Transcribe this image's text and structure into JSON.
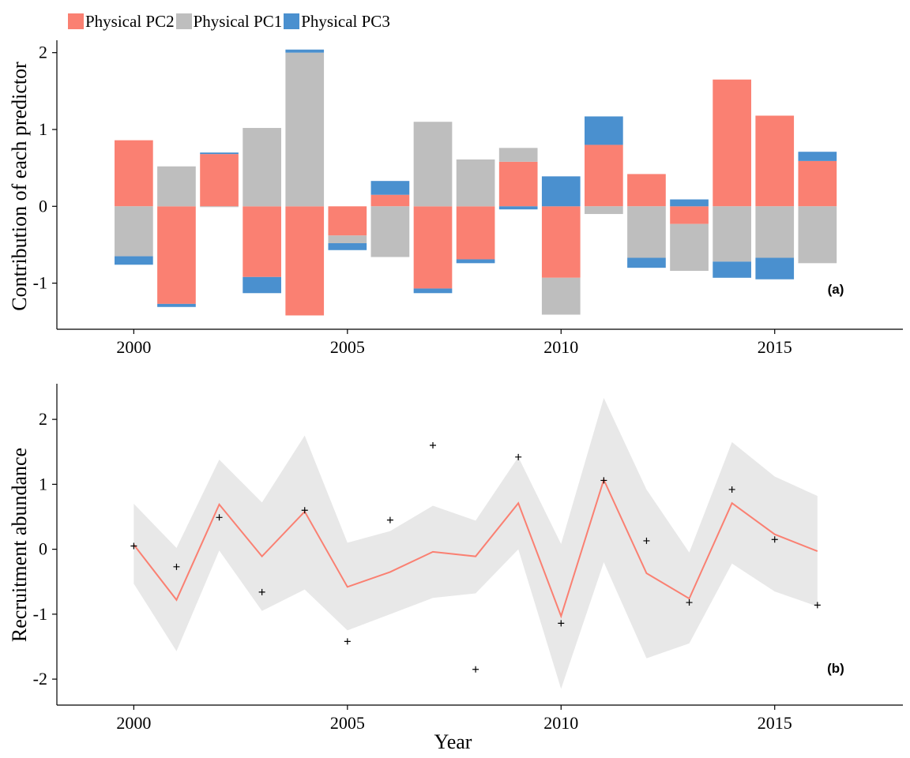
{
  "legend": {
    "items": [
      {
        "label": "Physical PC2",
        "color": "#FA8072"
      },
      {
        "label": "Physical PC1",
        "color": "#BEBEBE"
      },
      {
        "label": "Physical PC3",
        "color": "#4A90CF"
      }
    ]
  },
  "chart_data": [
    {
      "type": "bar",
      "stacked": "diverging",
      "panel_label": "(a)",
      "ylabel": "Contribution of each predictor",
      "xlabel": "",
      "xlim": [
        1998.2,
        2018.0
      ],
      "ylim": [
        -1.6,
        2.12
      ],
      "xticks": [
        2000,
        2005,
        2010,
        2015
      ],
      "yticks": [
        -1,
        0,
        1,
        2
      ],
      "grid": false,
      "legend_position": "top-left",
      "categories": [
        2000,
        2001,
        2002,
        2003,
        2004,
        2005,
        2006,
        2007,
        2008,
        2009,
        2010,
        2011,
        2012,
        2013,
        2014,
        2015,
        2016
      ],
      "series": [
        {
          "name": "Physical PC2",
          "color": "#FA8072",
          "values": [
            0.86,
            -1.27,
            0.68,
            -0.92,
            -1.42,
            -0.38,
            0.15,
            -1.07,
            -0.69,
            0.58,
            -0.93,
            0.8,
            0.42,
            -0.23,
            1.65,
            1.18,
            0.59
          ]
        },
        {
          "name": "Physical PC1",
          "color": "#BEBEBE",
          "values": [
            -0.65,
            0.52,
            -0.01,
            1.02,
            2.0,
            -0.1,
            -0.66,
            1.1,
            0.61,
            0.18,
            -0.48,
            -0.1,
            -0.67,
            -0.61,
            -0.72,
            -0.67,
            -0.74
          ]
        },
        {
          "name": "Physical PC3",
          "color": "#4A90CF",
          "values": [
            -0.11,
            -0.04,
            0.02,
            -0.21,
            0.04,
            -0.09,
            0.18,
            -0.06,
            -0.05,
            -0.04,
            0.39,
            0.37,
            -0.13,
            0.09,
            -0.21,
            -0.28,
            0.12
          ]
        }
      ]
    },
    {
      "type": "line",
      "panel_label": "(b)",
      "ylabel": "Recruitment abundance",
      "xlabel": "Year",
      "xlim": [
        1998.2,
        2018.0
      ],
      "ylim": [
        -2.4,
        2.5
      ],
      "xticks": [
        2000,
        2005,
        2010,
        2015
      ],
      "yticks": [
        -2,
        -1,
        0,
        1,
        2
      ],
      "grid": false,
      "x": [
        2000,
        2001,
        2002,
        2003,
        2004,
        2005,
        2006,
        2007,
        2008,
        2009,
        2010,
        2011,
        2012,
        2013,
        2014,
        2015,
        2016
      ],
      "fitted": {
        "color": "#FA8072",
        "values": [
          0.07,
          -0.78,
          0.69,
          -0.11,
          0.58,
          -0.58,
          -0.35,
          -0.04,
          -0.11,
          0.71,
          -1.03,
          1.07,
          -0.37,
          -0.76,
          0.71,
          0.23,
          -0.03
        ]
      },
      "ribbon": {
        "color": "#E8E8E8",
        "upper": [
          0.7,
          0.02,
          1.38,
          0.72,
          1.75,
          0.1,
          0.28,
          0.67,
          0.44,
          1.42,
          0.08,
          2.33,
          0.92,
          -0.05,
          1.65,
          1.12,
          0.82
        ],
        "lower": [
          -0.53,
          -1.57,
          -0.02,
          -0.95,
          -0.62,
          -1.25,
          -1.0,
          -0.75,
          -0.68,
          0.0,
          -2.15,
          -0.2,
          -1.68,
          -1.45,
          -0.22,
          -0.65,
          -0.88
        ]
      },
      "observed": {
        "values": [
          0.05,
          -0.27,
          0.49,
          -0.66,
          0.6,
          -1.42,
          0.45,
          1.6,
          -1.85,
          1.42,
          -1.14,
          1.06,
          0.13,
          -0.82,
          0.92,
          0.15,
          -0.86
        ]
      }
    }
  ]
}
